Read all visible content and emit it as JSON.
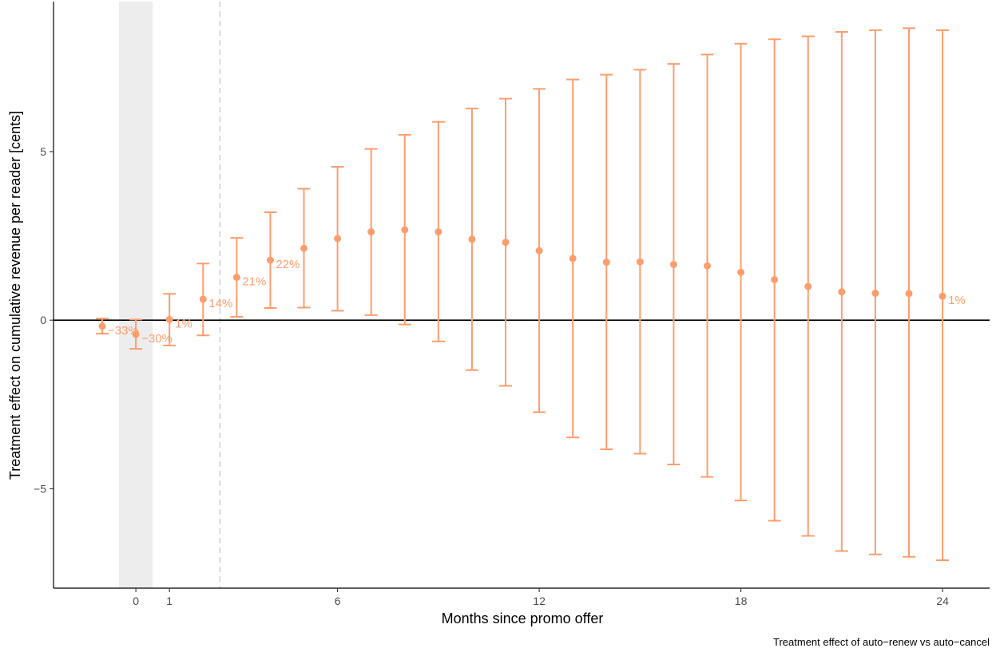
{
  "chart_data": {
    "type": "scatter",
    "subtype": "point-with-error-bars",
    "xlabel": "Months since promo offer",
    "ylabel": "Treatment effect on cumulative revenue per reader [cents]",
    "caption": "Treatment effect of auto−renew vs auto−cancel",
    "x_ticks": [
      {
        "value": 0,
        "label": "0"
      },
      {
        "value": 1,
        "label": "1"
      },
      {
        "value": 6,
        "label": "6"
      },
      {
        "value": 12,
        "label": "12"
      },
      {
        "value": 18,
        "label": "18"
      },
      {
        "value": 24,
        "label": "24"
      }
    ],
    "y_ticks": [
      {
        "value": -5,
        "label": "−5"
      },
      {
        "value": 0,
        "label": "0"
      },
      {
        "value": 5,
        "label": "5"
      }
    ],
    "xlim": [
      -2.45,
      25.4
    ],
    "ylim": [
      -7.95,
      9.45
    ],
    "grid": false,
    "reference_hline": 0,
    "reference_vline": 2.5,
    "shaded_band": [
      -0.5,
      0.5
    ],
    "series": [
      {
        "color": "#FC9D6E",
        "points": [
          {
            "x": -1,
            "y": -0.18,
            "lo": -0.4,
            "hi": 0.05,
            "label": "−33%"
          },
          {
            "x": 0,
            "y": -0.42,
            "lo": -0.85,
            "hi": 0.02,
            "label": "−30%"
          },
          {
            "x": 1,
            "y": 0.02,
            "lo": -0.75,
            "hi": 0.78,
            "label": "1%"
          },
          {
            "x": 2,
            "y": 0.62,
            "lo": -0.45,
            "hi": 1.68,
            "label": "14%"
          },
          {
            "x": 3,
            "y": 1.27,
            "lo": 0.1,
            "hi": 2.44,
            "label": "21%"
          },
          {
            "x": 4,
            "y": 1.78,
            "lo": 0.36,
            "hi": 3.2,
            "label": "22%"
          },
          {
            "x": 5,
            "y": 2.13,
            "lo": 0.37,
            "hi": 3.9,
            "label": ""
          },
          {
            "x": 6,
            "y": 2.42,
            "lo": 0.28,
            "hi": 4.55,
            "label": ""
          },
          {
            "x": 7,
            "y": 2.62,
            "lo": 0.15,
            "hi": 5.08,
            "label": ""
          },
          {
            "x": 8,
            "y": 2.68,
            "lo": -0.13,
            "hi": 5.5,
            "label": ""
          },
          {
            "x": 9,
            "y": 2.62,
            "lo": -0.63,
            "hi": 5.88,
            "label": ""
          },
          {
            "x": 10,
            "y": 2.4,
            "lo": -1.48,
            "hi": 6.28,
            "label": ""
          },
          {
            "x": 11,
            "y": 2.31,
            "lo": -1.95,
            "hi": 6.57,
            "label": ""
          },
          {
            "x": 12,
            "y": 2.06,
            "lo": -2.73,
            "hi": 6.86,
            "label": ""
          },
          {
            "x": 13,
            "y": 1.83,
            "lo": -3.48,
            "hi": 7.14,
            "label": ""
          },
          {
            "x": 14,
            "y": 1.72,
            "lo": -3.83,
            "hi": 7.28,
            "label": ""
          },
          {
            "x": 15,
            "y": 1.73,
            "lo": -3.96,
            "hi": 7.43,
            "label": ""
          },
          {
            "x": 16,
            "y": 1.65,
            "lo": -4.28,
            "hi": 7.6,
            "label": ""
          },
          {
            "x": 17,
            "y": 1.61,
            "lo": -4.65,
            "hi": 7.88,
            "label": ""
          },
          {
            "x": 18,
            "y": 1.42,
            "lo": -5.35,
            "hi": 8.2,
            "label": ""
          },
          {
            "x": 19,
            "y": 1.2,
            "lo": -5.95,
            "hi": 8.33,
            "label": ""
          },
          {
            "x": 20,
            "y": 1.0,
            "lo": -6.4,
            "hi": 8.42,
            "label": ""
          },
          {
            "x": 21,
            "y": 0.84,
            "lo": -6.85,
            "hi": 8.55,
            "label": ""
          },
          {
            "x": 22,
            "y": 0.8,
            "lo": -6.95,
            "hi": 8.6,
            "label": ""
          },
          {
            "x": 23,
            "y": 0.79,
            "lo": -7.02,
            "hi": 8.66,
            "label": ""
          },
          {
            "x": 24,
            "y": 0.71,
            "lo": -7.12,
            "hi": 8.6,
            "label": "1%"
          }
        ]
      }
    ]
  }
}
